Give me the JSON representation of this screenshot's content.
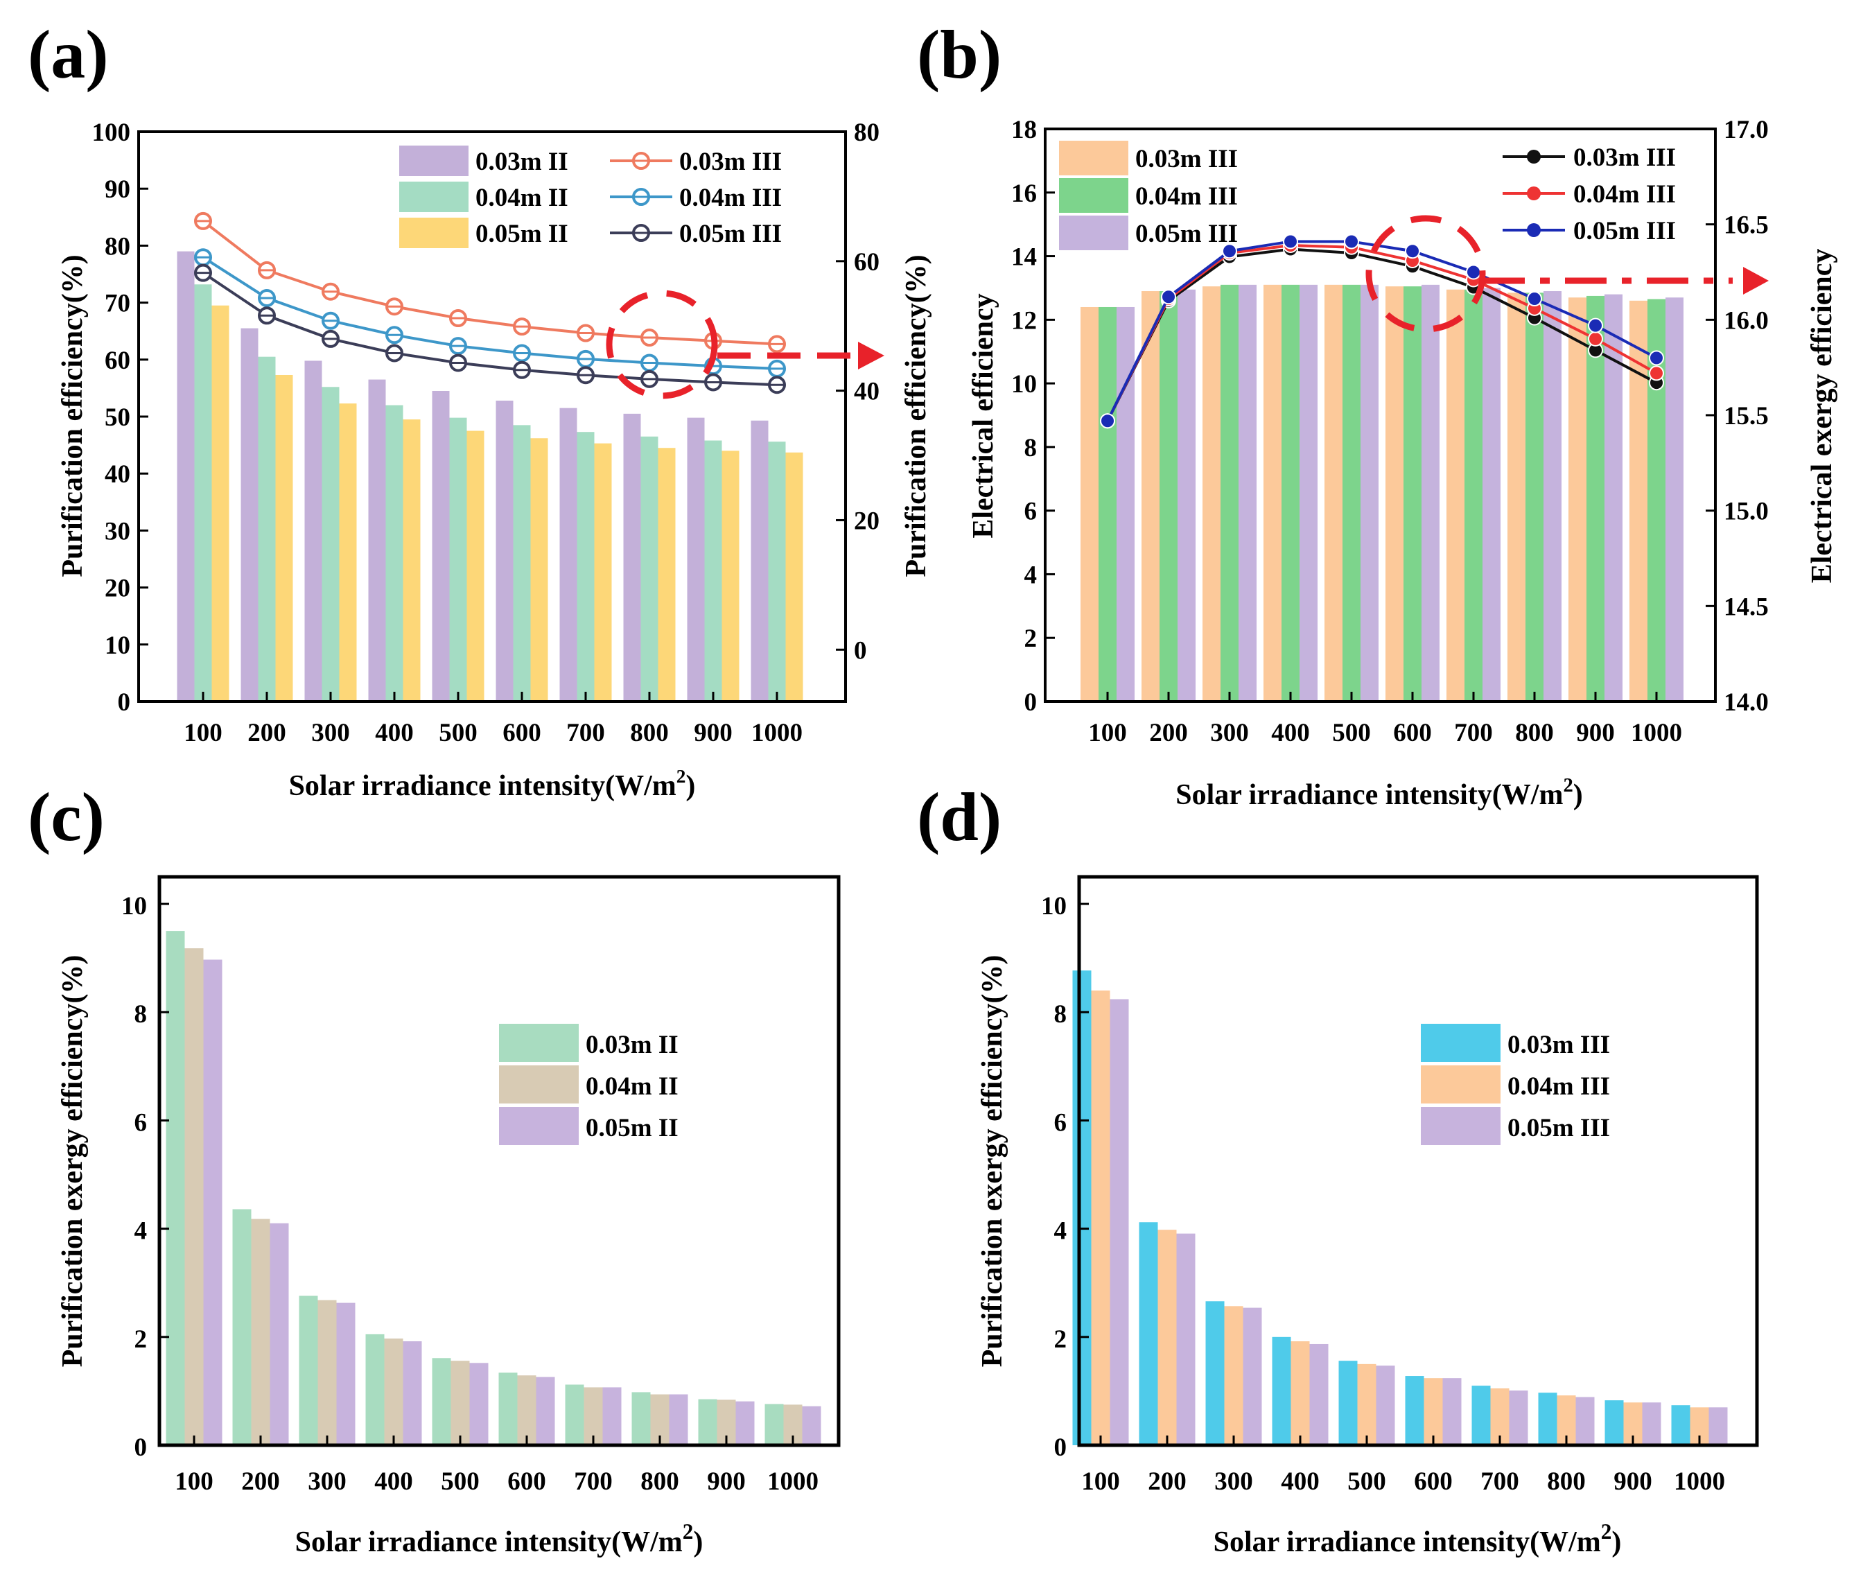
{
  "chart_data": [
    {
      "panel": "(a)",
      "type": "bar+line",
      "categories": [
        "100",
        "200",
        "300",
        "400",
        "500",
        "600",
        "700",
        "800",
        "900",
        "1000"
      ],
      "xlabel": "Solar irradiance intensity(W/m2)",
      "xlabel_main": "Solar irradiance intensity(W/m",
      "xlabel_sup": "2",
      "xlabel_end": ")",
      "ylabel": "Purification efficiency(%)",
      "ylim": [
        0,
        100
      ],
      "yticks": [
        0,
        10,
        20,
        30,
        40,
        50,
        60,
        70,
        80,
        90,
        100
      ],
      "y2label": "Purification efficiency(%)",
      "y2lim": [
        -8,
        80
      ],
      "y2ticks": [
        0,
        20,
        40,
        60,
        80
      ],
      "bar_series": [
        {
          "name": "0.03m II",
          "color": "#c3b0d9",
          "values": [
            79.0,
            65.5,
            59.8,
            56.5,
            54.5,
            52.8,
            51.5,
            50.5,
            49.8,
            49.3
          ]
        },
        {
          "name": "0.04m II",
          "color": "#a4dcc3",
          "values": [
            73.2,
            60.5,
            55.2,
            52.0,
            49.8,
            48.5,
            47.3,
            46.5,
            45.8,
            45.6
          ]
        },
        {
          "name": "0.05m II",
          "color": "#fdd778",
          "values": [
            69.5,
            57.3,
            52.3,
            49.5,
            47.5,
            46.2,
            45.3,
            44.5,
            44.0,
            43.7
          ]
        }
      ],
      "line_series": [
        {
          "name": "0.03m III",
          "color": "#ef7a5f",
          "values": [
            66.2,
            58.6,
            55.3,
            53.0,
            51.2,
            49.9,
            48.9,
            48.2,
            47.7,
            47.2
          ]
        },
        {
          "name": "0.04m III",
          "color": "#3d97c9",
          "values": [
            60.6,
            54.3,
            50.8,
            48.6,
            46.9,
            45.8,
            44.9,
            44.3,
            43.8,
            43.4
          ]
        },
        {
          "name": "0.05m III",
          "color": "#3b3d58",
          "values": [
            58.2,
            51.6,
            48.0,
            45.8,
            44.3,
            43.2,
            42.4,
            41.8,
            41.3,
            40.9
          ]
        }
      ]
    },
    {
      "panel": "(b)",
      "type": "bar+line",
      "categories": [
        "100",
        "200",
        "300",
        "400",
        "500",
        "600",
        "700",
        "800",
        "900",
        "1000"
      ],
      "xlabel": "Solar irradiance intensity(W/m2)",
      "xlabel_main": "Solar irradiance intensity(W/m",
      "xlabel_sup": "2",
      "xlabel_end": ")",
      "ylabel": "Electrical efficiency",
      "ylim": [
        0,
        18
      ],
      "yticks": [
        0,
        2,
        4,
        6,
        8,
        10,
        12,
        14,
        16,
        18
      ],
      "y2label": "Electrical exergy efficiency",
      "y2lim": [
        14.0,
        17.0
      ],
      "y2ticks": [
        "14.0",
        "14.5",
        "15.0",
        "15.5",
        "16.0",
        "16.5",
        "17.0"
      ],
      "bar_series": [
        {
          "name": "0.03m III",
          "color": "#fcc99a",
          "values": [
            12.4,
            12.9,
            13.05,
            13.1,
            13.1,
            13.05,
            12.95,
            12.85,
            12.7,
            12.6
          ]
        },
        {
          "name": "0.04m III",
          "color": "#7dd48c",
          "values": [
            12.4,
            12.9,
            13.1,
            13.1,
            13.1,
            13.05,
            12.95,
            12.85,
            12.75,
            12.65
          ]
        },
        {
          "name": "0.05m III",
          "color": "#c5b3dd",
          "values": [
            12.4,
            12.95,
            13.1,
            13.1,
            13.1,
            13.1,
            13.0,
            12.9,
            12.8,
            12.7
          ]
        }
      ],
      "line_series": [
        {
          "name": "0.03m III",
          "color": "#111111",
          "values": [
            15.47,
            16.1,
            16.33,
            16.37,
            16.35,
            16.28,
            16.17,
            16.01,
            15.84,
            15.67
          ]
        },
        {
          "name": "0.04m III",
          "color": "#ee3333",
          "values": [
            15.47,
            16.11,
            16.35,
            16.39,
            16.38,
            16.31,
            16.21,
            16.06,
            15.9,
            15.72
          ]
        },
        {
          "name": "0.05m III",
          "color": "#1a2bb5",
          "values": [
            15.47,
            16.12,
            16.36,
            16.41,
            16.41,
            16.36,
            16.25,
            16.11,
            15.97,
            15.8
          ]
        }
      ]
    },
    {
      "panel": "(c)",
      "type": "bar",
      "categories": [
        "100",
        "200",
        "300",
        "400",
        "500",
        "600",
        "700",
        "800",
        "900",
        "1000"
      ],
      "xlabel": "Solar irradiance intensity(W/m2)",
      "xlabel_main": "Solar irradiance intensity(W/m",
      "xlabel_sup": "2",
      "xlabel_end": ")",
      "ylabel": "Purification exergy efficiency(%)",
      "ylim": [
        0,
        10.5
      ],
      "yticks": [
        0,
        2,
        4,
        6,
        8,
        10
      ],
      "series": [
        {
          "name": "0.03m II",
          "color": "#a8dcc0",
          "values": [
            9.5,
            4.36,
            2.76,
            2.05,
            1.61,
            1.34,
            1.12,
            0.98,
            0.85,
            0.76
          ]
        },
        {
          "name": "0.04m II",
          "color": "#d8cbb4",
          "values": [
            9.18,
            4.18,
            2.68,
            1.97,
            1.56,
            1.29,
            1.07,
            0.94,
            0.84,
            0.75
          ]
        },
        {
          "name": "0.05m II",
          "color": "#c7b3dd",
          "values": [
            8.97,
            4.1,
            2.63,
            1.92,
            1.52,
            1.26,
            1.07,
            0.94,
            0.81,
            0.72
          ]
        }
      ]
    },
    {
      "panel": "(d)",
      "type": "bar",
      "categories": [
        "100",
        "200",
        "300",
        "400",
        "500",
        "600",
        "700",
        "800",
        "900",
        "1000"
      ],
      "xlabel": "Solar irradiance intensity(W/m2)",
      "xlabel_main": "Solar irradiance intensity(W/m",
      "xlabel_sup": "2",
      "xlabel_end": ")",
      "ylabel": "Purification exergy efficiency(%)",
      "ylim": [
        0,
        10.5
      ],
      "yticks": [
        0,
        2,
        4,
        6,
        8,
        10
      ],
      "series": [
        {
          "name": "0.03m III",
          "color": "#4fcbea",
          "values": [
            8.77,
            4.12,
            2.66,
            2.0,
            1.56,
            1.28,
            1.1,
            0.97,
            0.83,
            0.74
          ]
        },
        {
          "name": "0.04m III",
          "color": "#fcc99a",
          "values": [
            8.4,
            3.98,
            2.57,
            1.92,
            1.5,
            1.24,
            1.05,
            0.92,
            0.79,
            0.7
          ]
        },
        {
          "name": "0.05m III",
          "color": "#c7b3dd",
          "values": [
            8.24,
            3.91,
            2.54,
            1.87,
            1.47,
            1.24,
            1.01,
            0.89,
            0.79,
            0.7
          ]
        }
      ]
    }
  ],
  "colors": {
    "annotation": "#e8222a",
    "axis": "#000000"
  }
}
